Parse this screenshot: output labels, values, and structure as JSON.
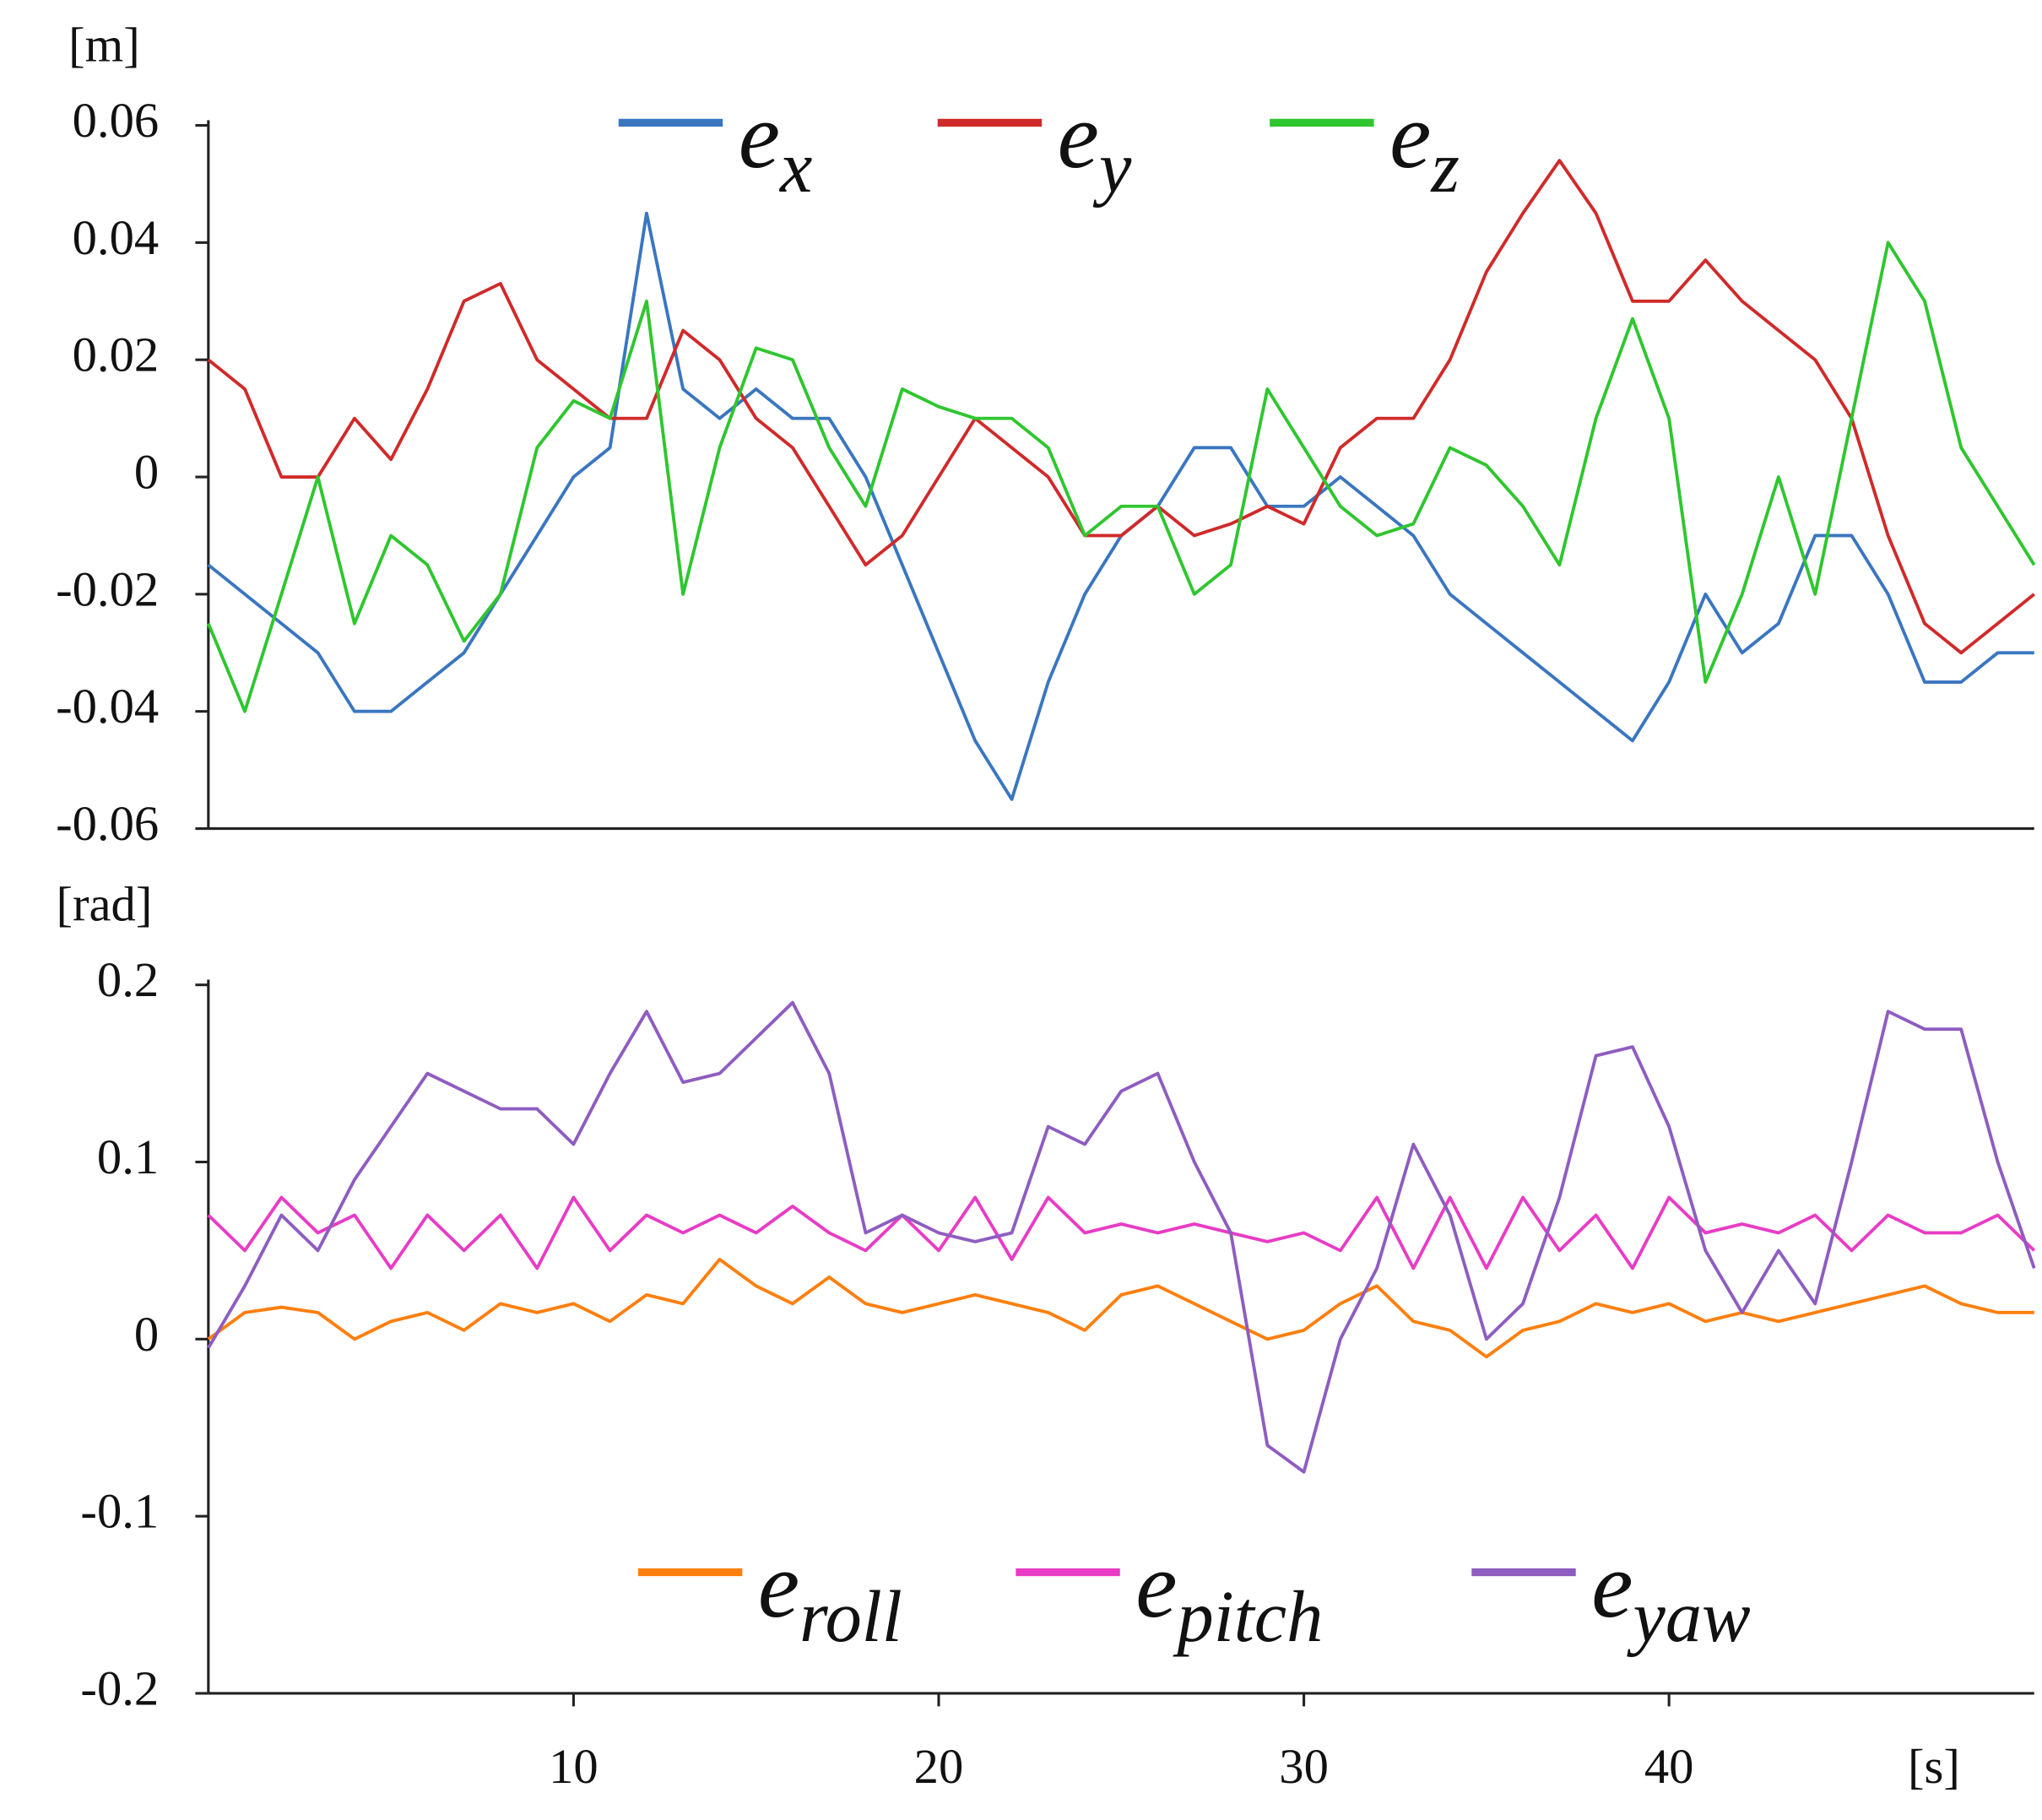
{
  "chart_data": [
    {
      "type": "line",
      "y_label": "[m]",
      "legend": "top",
      "x": [
        0,
        1,
        2,
        3,
        4,
        5,
        6,
        7,
        8,
        9,
        10,
        11,
        12,
        13,
        14,
        15,
        16,
        17,
        18,
        19,
        20,
        21,
        22,
        23,
        24,
        25,
        26,
        27,
        28,
        29,
        30,
        31,
        32,
        33,
        34,
        35,
        36,
        37,
        38,
        39,
        40,
        41,
        42,
        43,
        44,
        45,
        46,
        47,
        48,
        49,
        50
      ],
      "xlim": [
        0,
        50
      ],
      "ylim": [
        -0.06,
        0.06
      ],
      "yticks": [
        -0.06,
        -0.04,
        -0.02,
        0,
        0.02,
        0.04,
        0.06
      ],
      "series": [
        {
          "name": "ex",
          "color": "#3a76c0",
          "values": [
            -0.015,
            -0.02,
            -0.025,
            -0.03,
            -0.04,
            -0.04,
            -0.035,
            -0.03,
            -0.02,
            -0.01,
            0,
            0.005,
            0.045,
            0.015,
            0.01,
            0.015,
            0.01,
            0.01,
            0,
            -0.015,
            -0.03,
            -0.045,
            -0.055,
            -0.035,
            -0.02,
            -0.01,
            -0.005,
            0.005,
            0.005,
            -0.005,
            -0.005,
            0,
            -0.005,
            -0.01,
            -0.02,
            -0.025,
            -0.03,
            -0.035,
            -0.04,
            -0.045,
            -0.035,
            -0.02,
            -0.03,
            -0.025,
            -0.01,
            -0.01,
            -0.02,
            -0.035,
            -0.035,
            -0.03,
            -0.03
          ]
        },
        {
          "name": "ey",
          "color": "#d02a2a",
          "values": [
            0.02,
            0.015,
            0,
            0,
            0.01,
            0.003,
            0.015,
            0.03,
            0.033,
            0.02,
            0.015,
            0.01,
            0.01,
            0.025,
            0.02,
            0.01,
            0.005,
            -0.005,
            -0.015,
            -0.01,
            0,
            0.01,
            0.005,
            0,
            -0.01,
            -0.01,
            -0.005,
            -0.01,
            -0.008,
            -0.005,
            -0.008,
            0.005,
            0.01,
            0.01,
            0.02,
            0.035,
            0.045,
            0.054,
            0.045,
            0.03,
            0.03,
            0.037,
            0.03,
            0.025,
            0.02,
            0.01,
            -0.01,
            -0.025,
            -0.03,
            -0.025,
            -0.02
          ]
        },
        {
          "name": "ez",
          "color": "#2fc62f",
          "values": [
            -0.025,
            -0.04,
            -0.02,
            0,
            -0.025,
            -0.01,
            -0.015,
            -0.028,
            -0.02,
            0.005,
            0.013,
            0.01,
            0.03,
            -0.02,
            0.005,
            0.022,
            0.02,
            0.005,
            -0.005,
            0.015,
            0.012,
            0.01,
            0.01,
            0.005,
            -0.01,
            -0.005,
            -0.005,
            -0.02,
            -0.015,
            0.015,
            0.005,
            -0.005,
            -0.01,
            -0.008,
            0.005,
            0.002,
            -0.005,
            -0.015,
            0.01,
            0.027,
            0.01,
            -0.035,
            -0.02,
            0,
            -0.02,
            0.01,
            0.04,
            0.03,
            0.005,
            -0.005,
            -0.015
          ]
        }
      ]
    },
    {
      "type": "line",
      "y_label": "[rad]",
      "x_label": "[s]",
      "legend": "bottom",
      "x": [
        0,
        1,
        2,
        3,
        4,
        5,
        6,
        7,
        8,
        9,
        10,
        11,
        12,
        13,
        14,
        15,
        16,
        17,
        18,
        19,
        20,
        21,
        22,
        23,
        24,
        25,
        26,
        27,
        28,
        29,
        30,
        31,
        32,
        33,
        34,
        35,
        36,
        37,
        38,
        39,
        40,
        41,
        42,
        43,
        44,
        45,
        46,
        47,
        48,
        49,
        50
      ],
      "xlim": [
        0,
        50
      ],
      "xticks": [
        10,
        20,
        30,
        40
      ],
      "ylim": [
        -0.2,
        0.2
      ],
      "yticks": [
        -0.2,
        -0.1,
        0,
        0.1,
        0.2
      ],
      "series": [
        {
          "name": "eroll",
          "color": "#ff7f0e",
          "values": [
            0,
            0.015,
            0.018,
            0.015,
            0,
            0.01,
            0.015,
            0.005,
            0.02,
            0.015,
            0.02,
            0.01,
            0.025,
            0.02,
            0.045,
            0.03,
            0.02,
            0.035,
            0.02,
            0.015,
            0.02,
            0.025,
            0.02,
            0.015,
            0.005,
            0.025,
            0.03,
            0.02,
            0.01,
            0,
            0.005,
            0.02,
            0.03,
            0.01,
            0.005,
            -0.01,
            0.005,
            0.01,
            0.02,
            0.015,
            0.02,
            0.01,
            0.015,
            0.01,
            0.015,
            0.02,
            0.025,
            0.03,
            0.02,
            0.015,
            0.015
          ]
        },
        {
          "name": "epitch",
          "color": "#e83cc5",
          "values": [
            0.07,
            0.05,
            0.08,
            0.06,
            0.07,
            0.04,
            0.07,
            0.05,
            0.07,
            0.04,
            0.08,
            0.05,
            0.07,
            0.06,
            0.07,
            0.06,
            0.075,
            0.06,
            0.05,
            0.07,
            0.05,
            0.08,
            0.045,
            0.08,
            0.06,
            0.065,
            0.06,
            0.065,
            0.06,
            0.055,
            0.06,
            0.05,
            0.08,
            0.04,
            0.08,
            0.04,
            0.08,
            0.05,
            0.07,
            0.04,
            0.08,
            0.06,
            0.065,
            0.06,
            0.07,
            0.05,
            0.07,
            0.06,
            0.06,
            0.07,
            0.05
          ]
        },
        {
          "name": "eyaw",
          "color": "#8e5dc0",
          "values": [
            -0.005,
            0.03,
            0.07,
            0.05,
            0.09,
            0.12,
            0.15,
            0.14,
            0.13,
            0.13,
            0.11,
            0.15,
            0.185,
            0.145,
            0.15,
            0.17,
            0.19,
            0.15,
            0.06,
            0.07,
            0.06,
            0.055,
            0.06,
            0.12,
            0.11,
            0.14,
            0.15,
            0.1,
            0.06,
            -0.06,
            -0.075,
            0,
            0.04,
            0.11,
            0.07,
            0,
            0.02,
            0.08,
            0.16,
            0.165,
            0.12,
            0.05,
            0.015,
            0.05,
            0.02,
            0.1,
            0.185,
            0.175,
            0.175,
            0.1,
            0.04
          ]
        }
      ]
    }
  ]
}
